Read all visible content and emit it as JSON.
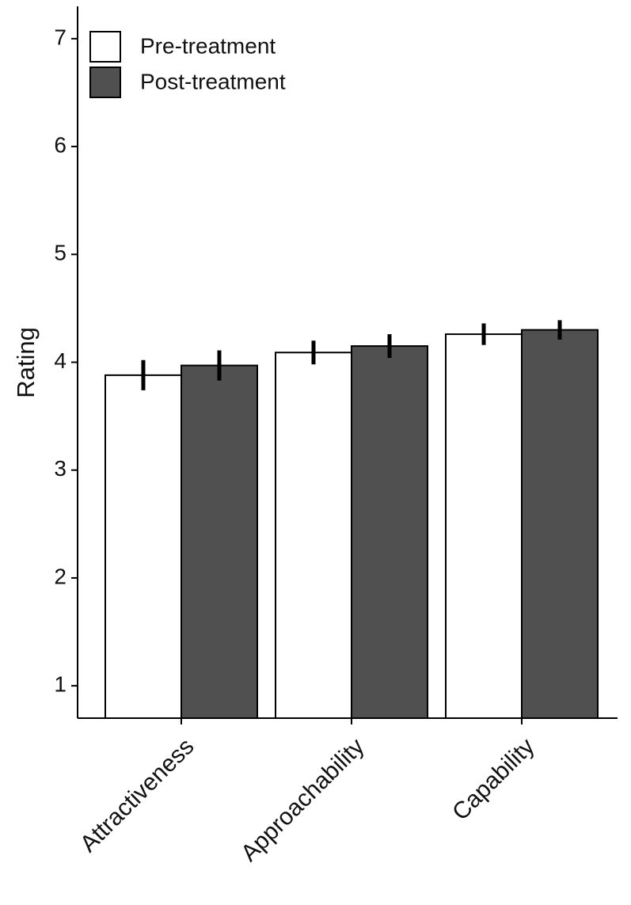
{
  "chart_data": {
    "type": "bar",
    "ylabel": "Rating",
    "categories": [
      "Attractiveness",
      "Approachability",
      "Capability"
    ],
    "series": [
      {
        "name": "Pre-treatment",
        "color": "#ffffff",
        "values": [
          3.88,
          4.09,
          4.26
        ],
        "errors": [
          0.14,
          0.11,
          0.1
        ]
      },
      {
        "name": "Post-treatment",
        "color": "#505050",
        "values": [
          3.97,
          4.15,
          4.3
        ],
        "errors": [
          0.14,
          0.11,
          0.09
        ]
      }
    ],
    "ylim": [
      0.7,
      7.3
    ],
    "yticks": [
      1,
      2,
      3,
      4,
      5,
      6,
      7
    ],
    "grid": false,
    "legend": "top-left"
  }
}
